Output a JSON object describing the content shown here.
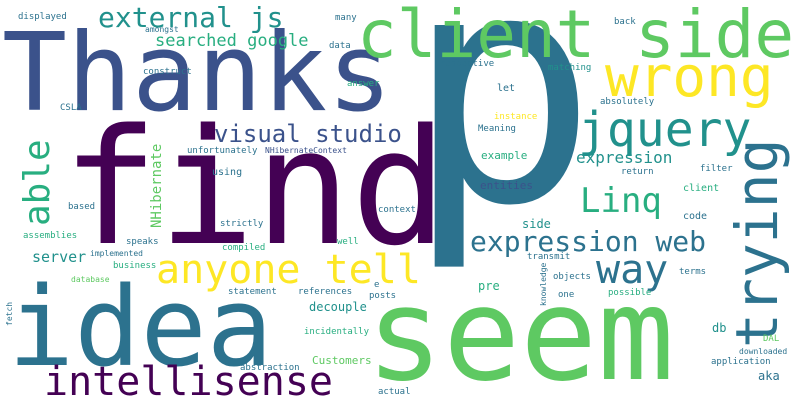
{
  "palette": {
    "dark_purple": "#440154",
    "indigo": "#3b528b",
    "steel_blue": "#2c728e",
    "teal": "#21918c",
    "green": "#28ae80",
    "lime": "#5ec962",
    "bright_green": "#7ad151",
    "yellow": "#fde725"
  },
  "words": {
    "p": "p",
    "find": "find",
    "thanks": "Thanks",
    "idea": "idea",
    "seem": "seem",
    "client_side": "client side",
    "wrong": "wrong",
    "trying": "trying",
    "jquery": "jquery",
    "anyone_tell": "anyone tell",
    "intellisense": "intellisense",
    "expression_web": "expression web",
    "way": "way",
    "linq": "Linq",
    "able": "able",
    "external_js": "external js",
    "visual_studio": "visual studio",
    "searched_google": "searched google",
    "expression": "expression",
    "server": "server",
    "nhibernate": "NHibernate",
    "decouple": "decouple",
    "db": "db",
    "aka": "aka",
    "side": "side",
    "pre": "pre",
    "example": "example",
    "entities": "entities",
    "customers": "Customers",
    "code": "code",
    "client": "client",
    "filter": "filter",
    "return": "return",
    "meaning": "Meaning",
    "instance": "instance",
    "let": "let",
    "respective": "respective",
    "matching": "matching",
    "back": "back",
    "absolutely": "absolutely",
    "answer": "answer",
    "many": "many",
    "data": "data",
    "displayed": "displayed",
    "amongst": "amongst",
    "construct": "construct",
    "csla": "CSLA",
    "unfortunately": "unfortunately",
    "nhibernatecontext": "NHibernateContext",
    "using": "using",
    "based": "based",
    "strictly": "strictly",
    "context": "context",
    "assemblies": "assemblies",
    "implemented": "implemented",
    "speaks": "speaks",
    "compiled": "compiled",
    "well": "well",
    "business": "business",
    "database": "database",
    "transmit": "transmit",
    "objects": "objects",
    "terms": "terms",
    "statement": "statement",
    "references": "references",
    "posts": "posts",
    "one": "one",
    "possible": "possible",
    "knowledge": "knowledge",
    "c": "c",
    "e": "e",
    "incidentally": "incidentally",
    "fetch": "fetch",
    "abstraction": "abstraction",
    "dal": "DAL",
    "downloaded": "downloaded",
    "application": "application",
    "actual": "actual"
  }
}
